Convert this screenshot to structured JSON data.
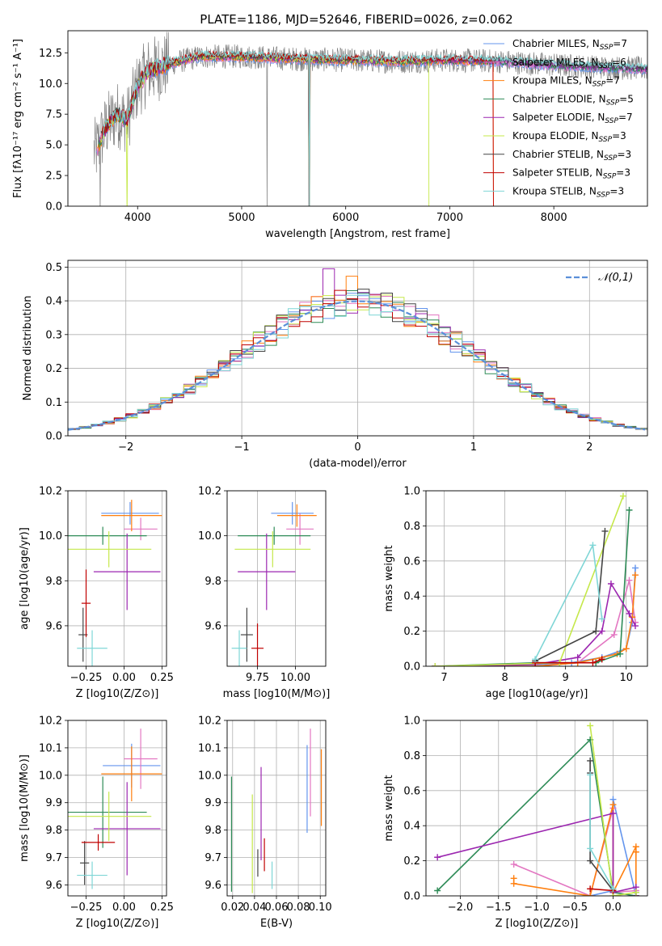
{
  "figure_title": "PLATE=1186, MJD=52646, FIBERID=0026, z=0.062",
  "palette": {
    "Chabrier MILES": "#6495ed",
    "Salpeter MILES": "#e377c2",
    "Kroupa MILES": "#ff7f0e",
    "Chabrier ELODIE": "#2e8b57",
    "Salpeter ELODIE": "#9c27b0",
    "Kroupa ELODIE": "#c5e84a",
    "Chabrier STELIB": "#444444",
    "Salpeter STELIB": "#c00000",
    "Kroupa STELIB": "#7fd6d6",
    "data": "#808080",
    "gaussian": "#5b8fd9"
  },
  "chart_data": [
    {
      "id": "spectrum",
      "type": "line",
      "xlabel": "wavelength [Angstrom, rest frame]",
      "ylabel": "Flux [fλ10⁻¹⁷ erg cm⁻² s⁻¹ A⁻¹]",
      "xlim": [
        3330,
        8900
      ],
      "ylim": [
        0,
        14.3
      ],
      "xticks": [
        4000,
        5000,
        6000,
        7000,
        8000
      ],
      "yticks": [
        0.0,
        2.5,
        5.0,
        7.5,
        10.0,
        12.5
      ],
      "xtick_labels": [
        "4000",
        "5000",
        "6000",
        "7000",
        "8000"
      ],
      "ytick_labels": [
        "0.0",
        "2.5",
        "5.0",
        "7.5",
        "10.0",
        "12.5"
      ],
      "legend_position": "right",
      "legend": [
        "Chabrier MILES, N_SSP=7",
        "Salpeter MILES, N_SSP=6",
        "Kroupa MILES, N_SSP=7",
        "Chabrier ELODIE, N_SSP=5",
        "Salpeter ELODIE, N_SSP=7",
        "Kroupa ELODIE, N_SSP=3",
        "Chabrier STELIB, N_SSP=3",
        "Salpeter STELIB, N_SSP=3",
        "Kroupa STELIB, N_SSP=3"
      ],
      "continuum_wavelength": [
        3600,
        3700,
        3800,
        3900,
        4000,
        4100,
        4200,
        4400,
        4600,
        5000,
        5500,
        6000,
        6500,
        7000,
        7500,
        8000,
        8500,
        8900
      ],
      "continuum_flux": [
        4.5,
        6.5,
        7.5,
        7.0,
        9.8,
        11.0,
        11.3,
        11.8,
        12.2,
        12.2,
        12.0,
        11.9,
        11.8,
        11.9,
        11.8,
        11.5,
        11.3,
        11.2
      ]
    },
    {
      "id": "residuals",
      "type": "step",
      "xlabel": "(data-model)/error",
      "ylabel": "Normed distribution",
      "xlim": [
        -2.5,
        2.5
      ],
      "ylim": [
        0,
        0.52
      ],
      "xticks": [
        -2,
        -1,
        0,
        1,
        2
      ],
      "yticks": [
        0.0,
        0.1,
        0.2,
        0.3,
        0.4,
        0.5
      ],
      "xtick_labels": [
        "−2",
        "−1",
        "0",
        "1",
        "2"
      ],
      "ytick_labels": [
        "0.0",
        "0.1",
        "0.2",
        "0.3",
        "0.4",
        "0.5"
      ],
      "legend": [
        "𝒩(0,1)"
      ],
      "legend_position": "top-right"
    },
    {
      "id": "age_vs_Z",
      "type": "errorbar",
      "xlabel": "Z [log10(Z/Z⊙)]",
      "ylabel": "age  [log10(age/yr)]",
      "xlim": [
        -0.37,
        0.28
      ],
      "ylim": [
        9.42,
        10.2
      ],
      "xticks": [
        -0.25,
        0.0,
        0.25
      ],
      "yticks": [
        9.6,
        9.8,
        10.0,
        10.2
      ],
      "xtick_labels": [
        "−0.25",
        "0.00",
        "0.25"
      ],
      "ytick_labels": [
        "9.6",
        "9.8",
        "10.0",
        "10.2"
      ],
      "series": [
        {
          "model": "Chabrier MILES",
          "x": 0.04,
          "y": 10.1,
          "xerr": 0.19,
          "yerr": 0.05
        },
        {
          "model": "Salpeter MILES",
          "x": 0.11,
          "y": 10.03,
          "xerr": 0.11,
          "yerr": 0.05
        },
        {
          "model": "Kroupa MILES",
          "x": 0.05,
          "y": 10.09,
          "xerr": 0.2,
          "yerr": 0.07
        },
        {
          "model": "Chabrier ELODIE",
          "x": -0.14,
          "y": 10.0,
          "xerr": 0.29,
          "yerr": 0.04
        },
        {
          "model": "Salpeter ELODIE",
          "x": 0.02,
          "y": 9.84,
          "xerr": 0.22,
          "yerr": 0.17
        },
        {
          "model": "Kroupa ELODIE",
          "x": -0.1,
          "y": 9.94,
          "xerr": 0.28,
          "yerr": 0.08
        },
        {
          "model": "Chabrier STELIB",
          "x": -0.27,
          "y": 9.56,
          "xerr": 0.03,
          "yerr": 0.12
        },
        {
          "model": "Salpeter STELIB",
          "x": -0.25,
          "y": 9.7,
          "xerr": 0.03,
          "yerr": 0.15
        },
        {
          "model": "Kroupa STELIB",
          "x": -0.21,
          "y": 9.5,
          "xerr": 0.1,
          "yerr": 0.08
        }
      ]
    },
    {
      "id": "age_vs_mass",
      "type": "errorbar",
      "xlabel": "mass [log10(M/M⊙)]",
      "ylabel": "",
      "xlim": [
        9.55,
        10.2
      ],
      "ylim": [
        9.42,
        10.2
      ],
      "xticks": [
        9.75,
        10.0
      ],
      "yticks": [
        9.6,
        9.8,
        10.0,
        10.2
      ],
      "xtick_labels": [
        "9.75",
        "10.00"
      ],
      "ytick_labels": [
        "9.6",
        "9.8",
        "10.0",
        "10.2"
      ],
      "series": [
        {
          "model": "Chabrier MILES",
          "x": 9.98,
          "y": 10.1,
          "xerr": 0.14,
          "yerr": 0.05
        },
        {
          "model": "Salpeter MILES",
          "x": 10.03,
          "y": 10.03,
          "xerr": 0.09,
          "yerr": 0.07
        },
        {
          "model": "Kroupa MILES",
          "x": 10.01,
          "y": 10.09,
          "xerr": 0.13,
          "yerr": 0.05
        },
        {
          "model": "Chabrier ELODIE",
          "x": 9.86,
          "y": 10.0,
          "xerr": 0.24,
          "yerr": 0.04
        },
        {
          "model": "Salpeter ELODIE",
          "x": 9.81,
          "y": 9.84,
          "xerr": 0.19,
          "yerr": 0.17
        },
        {
          "model": "Kroupa ELODIE",
          "x": 9.85,
          "y": 9.94,
          "xerr": 0.25,
          "yerr": 0.08
        },
        {
          "model": "Chabrier STELIB",
          "x": 9.68,
          "y": 9.56,
          "xerr": 0.04,
          "yerr": 0.12
        },
        {
          "model": "Salpeter STELIB",
          "x": 9.75,
          "y": 9.5,
          "xerr": 0.04,
          "yerr": 0.11
        },
        {
          "model": "Kroupa STELIB",
          "x": 9.63,
          "y": 9.5,
          "xerr": 0.05,
          "yerr": 0.08
        }
      ]
    },
    {
      "id": "weights_vs_age",
      "type": "line",
      "xlabel": "age  [log10(age/yr)]",
      "ylabel": "mass weight",
      "xlim": [
        6.7,
        10.35
      ],
      "ylim": [
        0,
        1.0
      ],
      "xticks": [
        7,
        8,
        9,
        10
      ],
      "yticks": [
        0.0,
        0.2,
        0.4,
        0.6,
        0.8,
        1.0
      ],
      "xtick_labels": [
        "7",
        "8",
        "9",
        "10"
      ],
      "ytick_labels": [
        "0.0",
        "0.2",
        "0.4",
        "0.6",
        "0.8",
        "1.0"
      ],
      "series": [
        {
          "model": "Chabrier MILES",
          "x": [
            6.85,
            8.5,
            9.1,
            9.6,
            10.0,
            10.1,
            10.15
          ],
          "y": [
            0.0,
            0.01,
            0.02,
            0.05,
            0.1,
            0.25,
            0.56
          ]
        },
        {
          "model": "Salpeter MILES",
          "x": [
            6.85,
            8.5,
            9.2,
            9.8,
            10.05,
            10.15
          ],
          "y": [
            0.0,
            0.0,
            0.02,
            0.18,
            0.49,
            0.25
          ]
        },
        {
          "model": "Kroupa MILES",
          "x": [
            6.85,
            8.5,
            9.2,
            9.85,
            10.0,
            10.1,
            10.15
          ],
          "y": [
            0.0,
            0.0,
            0.02,
            0.07,
            0.1,
            0.28,
            0.52
          ]
        },
        {
          "model": "Chabrier ELODIE",
          "x": [
            6.85,
            8.5,
            9.5,
            9.9,
            10.05
          ],
          "y": [
            0.0,
            0.02,
            0.02,
            0.07,
            0.89
          ]
        },
        {
          "model": "Salpeter ELODIE",
          "x": [
            6.85,
            8.5,
            9.2,
            9.6,
            9.75,
            10.05,
            10.15
          ],
          "y": [
            0.0,
            0.01,
            0.05,
            0.2,
            0.47,
            0.3,
            0.23
          ]
        },
        {
          "model": "Kroupa ELODIE",
          "x": [
            6.85,
            8.9,
            9.95
          ],
          "y": [
            0.0,
            0.02,
            0.97
          ]
        },
        {
          "model": "Chabrier STELIB",
          "x": [
            8.5,
            9.5,
            9.65
          ],
          "y": [
            0.03,
            0.2,
            0.77
          ]
        },
        {
          "model": "Salpeter STELIB",
          "x": [
            8.5,
            9.45,
            9.6
          ],
          "y": [
            0.02,
            0.02,
            0.04
          ]
        },
        {
          "model": "Kroupa STELIB",
          "x": [
            8.5,
            9.45,
            9.6
          ],
          "y": [
            0.04,
            0.69,
            0.27
          ]
        }
      ]
    },
    {
      "id": "mass_vs_Z",
      "type": "errorbar",
      "xlabel": "Z [log10(Z/Z⊙)]",
      "ylabel": "mass [log10(M/M⊙)]",
      "xlim": [
        -0.37,
        0.28
      ],
      "ylim": [
        9.56,
        10.2
      ],
      "xticks": [
        -0.25,
        0.0,
        0.25
      ],
      "yticks": [
        9.6,
        9.7,
        9.8,
        9.9,
        10.0,
        10.1,
        10.2
      ],
      "xtick_labels": [
        "−0.25",
        "0.00",
        "0.25"
      ],
      "ytick_labels": [
        "9.6",
        "9.7",
        "9.8",
        "9.9",
        "10.0",
        "10.1",
        "10.2"
      ],
      "series": [
        {
          "model": "Chabrier MILES",
          "x": 0.05,
          "y": 10.035,
          "xerr": 0.19,
          "yerr": 0.08
        },
        {
          "model": "Salpeter MILES",
          "x": 0.11,
          "y": 10.06,
          "xerr": 0.11,
          "yerr": 0.11
        },
        {
          "model": "Kroupa MILES",
          "x": 0.05,
          "y": 10.005,
          "xerr": 0.2,
          "yerr": 0.1
        },
        {
          "model": "Chabrier ELODIE",
          "x": -0.14,
          "y": 9.865,
          "xerr": 0.29,
          "yerr": 0.13
        },
        {
          "model": "Salpeter ELODIE",
          "x": 0.02,
          "y": 9.805,
          "xerr": 0.22,
          "yerr": 0.17
        },
        {
          "model": "Kroupa ELODIE",
          "x": -0.1,
          "y": 9.85,
          "xerr": 0.28,
          "yerr": 0.09
        },
        {
          "model": "Chabrier STELIB",
          "x": -0.26,
          "y": 9.68,
          "xerr": 0.03,
          "yerr": 0.08
        },
        {
          "model": "Salpeter STELIB",
          "x": -0.17,
          "y": 9.755,
          "xerr": 0.11,
          "yerr": 0.03
        },
        {
          "model": "Kroupa STELIB",
          "x": -0.21,
          "y": 9.635,
          "xerr": 0.1,
          "yerr": 0.05
        }
      ]
    },
    {
      "id": "mass_vs_ebv",
      "type": "errorbar",
      "xlabel": "E(B-V)",
      "ylabel": "",
      "xlim": [
        0.015,
        0.105
      ],
      "ylim": [
        9.56,
        10.2
      ],
      "xticks": [
        0.02,
        0.04,
        0.06,
        0.08,
        0.1
      ],
      "yticks": [
        9.6,
        9.7,
        9.8,
        9.9,
        10.0,
        10.1,
        10.2
      ],
      "xtick_labels": [
        "0.02",
        "0.04",
        "0.06",
        "0.08",
        "0.10"
      ],
      "ytick_labels": [
        "9.6",
        "9.7",
        "9.8",
        "9.9",
        "10.0",
        "10.1",
        "10.2"
      ],
      "series": [
        {
          "model": "Chabrier MILES",
          "x": 0.088,
          "y": 9.95,
          "xerr": 0,
          "yerr": 0.16
        },
        {
          "model": "Salpeter MILES",
          "x": 0.091,
          "y": 10.01,
          "xerr": 0,
          "yerr": 0.16
        },
        {
          "model": "Kroupa MILES",
          "x": 0.101,
          "y": 9.955,
          "xerr": 0,
          "yerr": 0.14
        },
        {
          "model": "Chabrier ELODIE",
          "x": 0.019,
          "y": 9.785,
          "xerr": 0,
          "yerr": 0.21
        },
        {
          "model": "Salpeter ELODIE",
          "x": 0.046,
          "y": 9.86,
          "xerr": 0,
          "yerr": 0.17
        },
        {
          "model": "Kroupa ELODIE",
          "x": 0.038,
          "y": 9.75,
          "xerr": 0,
          "yerr": 0.18
        },
        {
          "model": "Chabrier STELIB",
          "x": 0.043,
          "y": 9.68,
          "xerr": 0,
          "yerr": 0.05
        },
        {
          "model": "Salpeter STELIB",
          "x": 0.049,
          "y": 9.71,
          "xerr": 0,
          "yerr": 0.06
        },
        {
          "model": "Kroupa STELIB",
          "x": 0.056,
          "y": 9.635,
          "xerr": 0,
          "yerr": 0.05
        }
      ]
    },
    {
      "id": "weights_vs_Z",
      "type": "line",
      "xlabel": "Z [log10(Z/Z⊙)]",
      "ylabel": "mass weight",
      "xlim": [
        -2.45,
        0.45
      ],
      "ylim": [
        0,
        1.0
      ],
      "xticks": [
        -2.0,
        -1.5,
        -1.0,
        -0.5,
        0.0
      ],
      "yticks": [
        0.0,
        0.2,
        0.4,
        0.6,
        0.8,
        1.0
      ],
      "xtick_labels": [
        "−2.0",
        "−1.5",
        "−1.0",
        "−0.5",
        "0.0"
      ],
      "ytick_labels": [
        "0.0",
        "0.2",
        "0.4",
        "0.6",
        "0.8",
        "1.0"
      ],
      "series": [
        {
          "model": "Chabrier MILES",
          "x": [
            -0.3,
            0.0,
            0.0,
            0.3,
            0.3
          ],
          "y": [
            0.0,
            0.03,
            0.55,
            0.0,
            0.02
          ]
        },
        {
          "model": "Salpeter MILES",
          "x": [
            -1.3,
            -0.3,
            0.0,
            0.0,
            0.3
          ],
          "y": [
            0.18,
            0.0,
            0.5,
            0.02,
            0.03
          ]
        },
        {
          "model": "Kroupa MILES",
          "x": [
            -1.3,
            -1.3,
            -0.3,
            0.0,
            0.0,
            0.3,
            0.3,
            0.3
          ],
          "y": [
            0.1,
            0.07,
            0.0,
            0.52,
            0.02,
            0.28,
            0.25,
            0.0
          ]
        },
        {
          "model": "Chabrier ELODIE",
          "x": [
            -2.3,
            -0.3,
            0.0,
            0.3
          ],
          "y": [
            0.03,
            0.89,
            0.02,
            0.0
          ]
        },
        {
          "model": "Salpeter ELODIE",
          "x": [
            -2.3,
            0.0,
            0.0,
            0.3,
            0.3
          ],
          "y": [
            0.22,
            0.47,
            0.02,
            0.05,
            0.0
          ]
        },
        {
          "model": "Kroupa ELODIE",
          "x": [
            -0.3,
            0.0,
            0.3
          ],
          "y": [
            0.97,
            0.0,
            0.02
          ]
        },
        {
          "model": "Chabrier STELIB",
          "x": [
            -0.3,
            -0.3,
            -0.3,
            0.0
          ],
          "y": [
            0.77,
            0.7,
            0.2,
            0.03
          ]
        },
        {
          "model": "Salpeter STELIB",
          "x": [
            -0.3,
            0.0
          ],
          "y": [
            0.04,
            0.03
          ]
        },
        {
          "model": "Kroupa STELIB",
          "x": [
            -0.3,
            -0.3,
            0.0
          ],
          "y": [
            0.69,
            0.27,
            0.04
          ]
        }
      ]
    }
  ]
}
